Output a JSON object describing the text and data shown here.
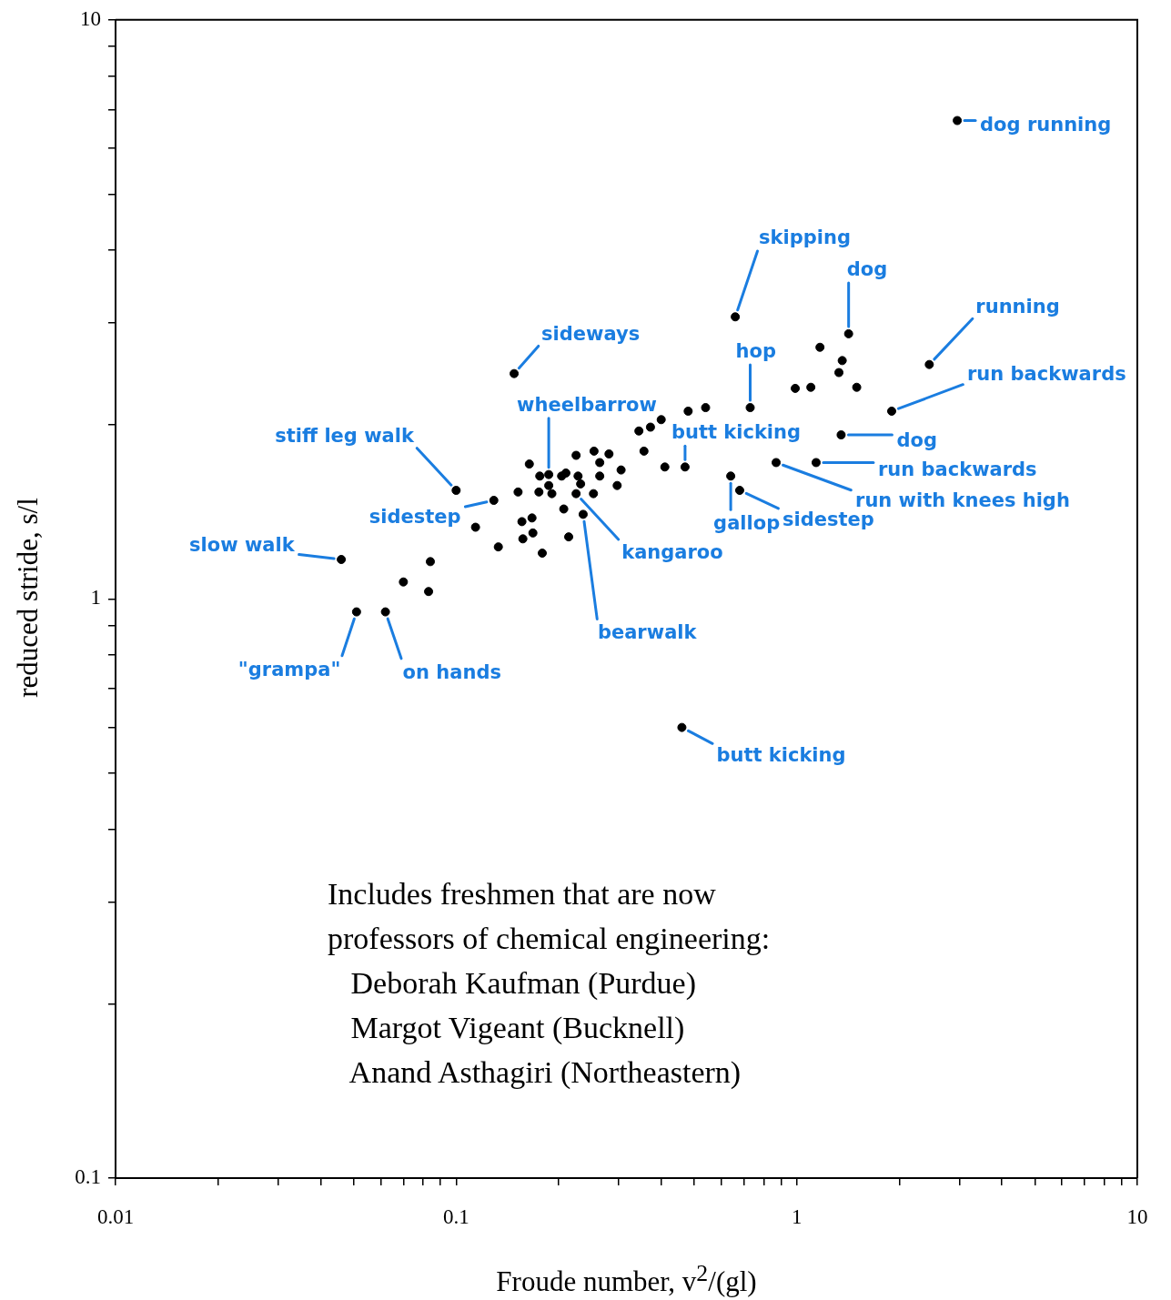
{
  "chart_data": {
    "type": "scatter",
    "xlabel": "Froude number, v$^{2}$/(gl)",
    "ylabel": "reduced stride, s/l",
    "log": "xy",
    "grid": false,
    "legend": false,
    "marker": "circle",
    "color": "#000000",
    "xlim": [
      0.01,
      10
    ],
    "ylim": [
      0.1,
      10
    ],
    "xticks": [
      0.01,
      {
        "value": 0.02,
        "label": null
      },
      {
        "value": 0.03,
        "label": null
      },
      {
        "value": 0.04,
        "label": null
      },
      {
        "value": 0.05,
        "label": null
      },
      {
        "value": 0.06,
        "label": null
      },
      {
        "value": 0.07,
        "label": null
      },
      {
        "value": 0.08,
        "label": null
      },
      {
        "value": 0.09,
        "label": null
      },
      0.1,
      {
        "value": 0.2,
        "label": null
      },
      {
        "value": 0.3,
        "label": null
      },
      {
        "value": 0.4,
        "label": null
      },
      {
        "value": 0.5,
        "label": null
      },
      {
        "value": 0.6,
        "label": null
      },
      {
        "value": 0.7,
        "label": null
      },
      {
        "value": 0.8,
        "label": null
      },
      {
        "value": 0.9,
        "label": null
      },
      1,
      {
        "value": 2,
        "label": null
      },
      {
        "value": 3,
        "label": null
      },
      {
        "value": 4,
        "label": null
      },
      {
        "value": 5,
        "label": null
      },
      {
        "value": 6,
        "label": null
      },
      {
        "value": 7,
        "label": null
      },
      {
        "value": 8,
        "label": null
      },
      {
        "value": 9,
        "label": null
      },
      10
    ],
    "yticks": [
      0.1,
      {
        "value": 0.2,
        "label": null
      },
      {
        "value": 0.3,
        "label": null
      },
      {
        "value": 0.4,
        "label": null
      },
      {
        "value": 0.5,
        "label": null
      },
      {
        "value": 0.6,
        "label": null
      },
      {
        "value": 0.7,
        "label": null
      },
      {
        "value": 0.8,
        "label": null
      },
      {
        "value": 0.9,
        "label": null
      },
      1,
      {
        "value": 2,
        "label": null
      },
      {
        "value": 3,
        "label": null
      },
      {
        "value": 4,
        "label": null
      },
      {
        "value": 5,
        "label": null
      },
      {
        "value": 6,
        "label": null
      },
      {
        "value": 7,
        "label": null
      },
      {
        "value": 8,
        "label": null
      },
      {
        "value": 9,
        "label": null
      },
      10
    ],
    "x": [
      0.148,
      0.344,
      0.372,
      0.356,
      0.225,
      0.254,
      0.281,
      0.264,
      0.164,
      0.305,
      0.187,
      0.176,
      0.21,
      0.204,
      0.228,
      0.264,
      0.187,
      0.232,
      0.1,
      0.152,
      0.175,
      0.191,
      0.225,
      0.253,
      0.297,
      0.129,
      0.207,
      0.236,
      0.114,
      0.156,
      0.167,
      0.168,
      0.157,
      0.214,
      0.133,
      0.179,
      0.046,
      0.084,
      0.07,
      0.083,
      0.051,
      0.062,
      0.66,
      1.42,
      1.17,
      1.36,
      1.33,
      2.45,
      0.99,
      1.1,
      1.5,
      0.73,
      0.48,
      0.54,
      0.4,
      0.41,
      0.47,
      1.9,
      1.35,
      0.87,
      1.14,
      0.64,
      0.68,
      2.96,
      0.46
    ],
    "values": [
      2.45,
      1.95,
      1.98,
      1.8,
      1.77,
      1.8,
      1.78,
      1.72,
      1.71,
      1.67,
      1.64,
      1.63,
      1.65,
      1.63,
      1.63,
      1.63,
      1.57,
      1.58,
      1.54,
      1.53,
      1.53,
      1.52,
      1.52,
      1.52,
      1.57,
      1.48,
      1.43,
      1.4,
      1.33,
      1.36,
      1.38,
      1.3,
      1.27,
      1.28,
      1.23,
      1.2,
      1.17,
      1.16,
      1.07,
      1.03,
      0.95,
      0.95,
      3.07,
      2.87,
      2.72,
      2.58,
      2.46,
      2.54,
      2.31,
      2.32,
      2.32,
      2.14,
      2.11,
      2.14,
      2.04,
      1.69,
      1.69,
      2.11,
      1.92,
      1.72,
      1.72,
      1.63,
      1.54,
      6.7,
      0.6
    ],
    "annotations": [
      {
        "text": "dog running",
        "x": 2.96,
        "y": 6.7
      },
      {
        "text": "skipping",
        "x": 0.66,
        "y": 3.07
      },
      {
        "text": "dog",
        "x": 1.42,
        "y": 2.87
      },
      {
        "text": "running",
        "x": 2.45,
        "y": 2.54
      },
      {
        "text": "sideways",
        "x": 0.148,
        "y": 2.45
      },
      {
        "text": "hop",
        "x": 0.73,
        "y": 2.14
      },
      {
        "text": "run backwards",
        "x": 1.9,
        "y": 2.11
      },
      {
        "text": "wheelbarrow",
        "x": 0.187,
        "y": 1.64
      },
      {
        "text": "butt kicking",
        "x": 0.47,
        "y": 1.69
      },
      {
        "text": "stiff leg walk",
        "x": 0.1,
        "y": 1.54
      },
      {
        "text": "dog",
        "x": 1.35,
        "y": 1.92
      },
      {
        "text": "run backwards",
        "x": 1.14,
        "y": 1.72
      },
      {
        "text": "run with knees high",
        "x": 0.87,
        "y": 1.72
      },
      {
        "text": "sidestep",
        "x": 0.129,
        "y": 1.48
      },
      {
        "text": "sidestep",
        "x": 0.68,
        "y": 1.54
      },
      {
        "text": "gallop",
        "x": 0.64,
        "y": 1.63
      },
      {
        "text": "kangaroo",
        "x": 0.225,
        "y": 1.52
      },
      {
        "text": "slow walk",
        "x": 0.046,
        "y": 1.17
      },
      {
        "text": "bearwalk",
        "x": 0.236,
        "y": 1.4
      },
      {
        "text": "\"grampa\"",
        "x": 0.051,
        "y": 0.95
      },
      {
        "text": "on hands",
        "x": 0.062,
        "y": 0.95
      },
      {
        "text": "butt kicking",
        "x": 0.46,
        "y": 0.6
      },
      "Includes freshmen that are now",
      "professors of chemical engineering:",
      "   Deborah Kaufman (Purdue)",
      "   Margot Vigeant (Bucknell)",
      "   Anand Asthagiri (Northeastern)"
    ]
  }
}
